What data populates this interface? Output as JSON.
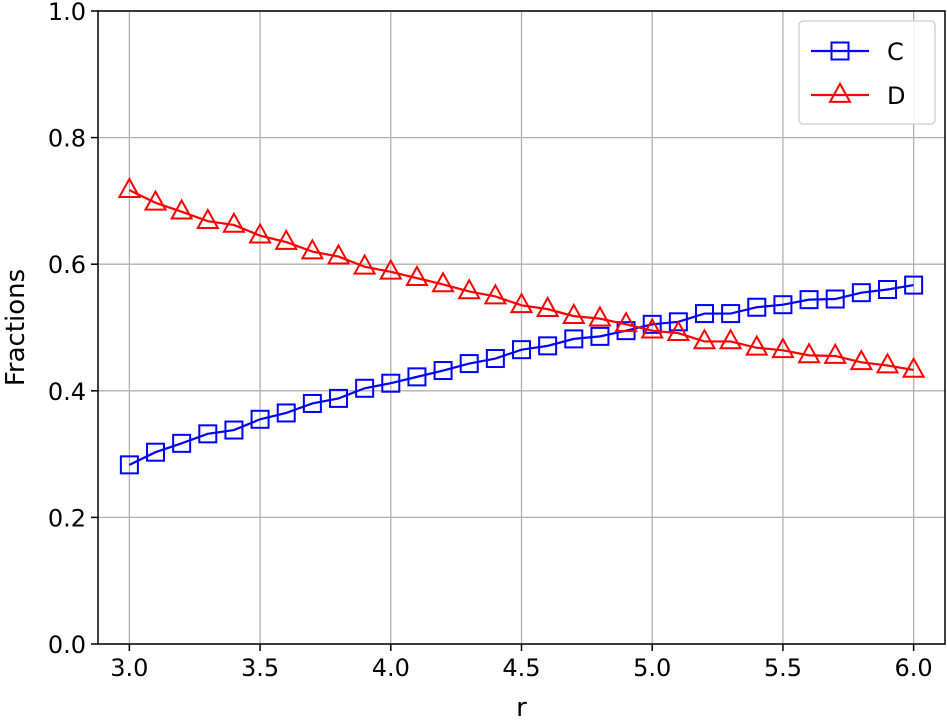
{
  "chart_data": {
    "type": "line",
    "title": "",
    "xlabel": "r",
    "ylabel": "Fractions",
    "xlim": [
      2.88,
      6.12
    ],
    "ylim": [
      0.0,
      1.0
    ],
    "grid": true,
    "legend_position": "top-right",
    "x_ticks": [
      "3.0",
      "3.5",
      "4.0",
      "4.5",
      "5.0",
      "5.5",
      "6.0"
    ],
    "y_ticks": [
      "0.0",
      "0.2",
      "0.4",
      "0.6",
      "0.8",
      "1.0"
    ],
    "x": [
      3.0,
      3.1,
      3.2,
      3.3,
      3.4,
      3.5,
      3.6,
      3.7,
      3.8,
      3.9,
      4.0,
      4.1,
      4.2,
      4.3,
      4.4,
      4.5,
      4.6,
      4.7,
      4.8,
      4.9,
      5.0,
      5.1,
      5.2,
      5.3,
      5.4,
      5.5,
      5.6,
      5.7,
      5.8,
      5.9,
      6.0
    ],
    "series": [
      {
        "name": "C",
        "color": "#0000ff",
        "marker": "square",
        "values": [
          0.283,
          0.303,
          0.317,
          0.332,
          0.338,
          0.355,
          0.365,
          0.38,
          0.388,
          0.404,
          0.412,
          0.422,
          0.432,
          0.443,
          0.451,
          0.465,
          0.471,
          0.482,
          0.486,
          0.495,
          0.505,
          0.509,
          0.522,
          0.522,
          0.532,
          0.536,
          0.544,
          0.545,
          0.555,
          0.56,
          0.567
        ]
      },
      {
        "name": "D",
        "color": "#ff0000",
        "marker": "triangle",
        "values": [
          0.717,
          0.697,
          0.683,
          0.668,
          0.662,
          0.645,
          0.635,
          0.62,
          0.612,
          0.596,
          0.588,
          0.578,
          0.568,
          0.557,
          0.549,
          0.535,
          0.529,
          0.518,
          0.514,
          0.505,
          0.495,
          0.491,
          0.478,
          0.478,
          0.468,
          0.464,
          0.456,
          0.455,
          0.445,
          0.44,
          0.433
        ]
      }
    ]
  }
}
